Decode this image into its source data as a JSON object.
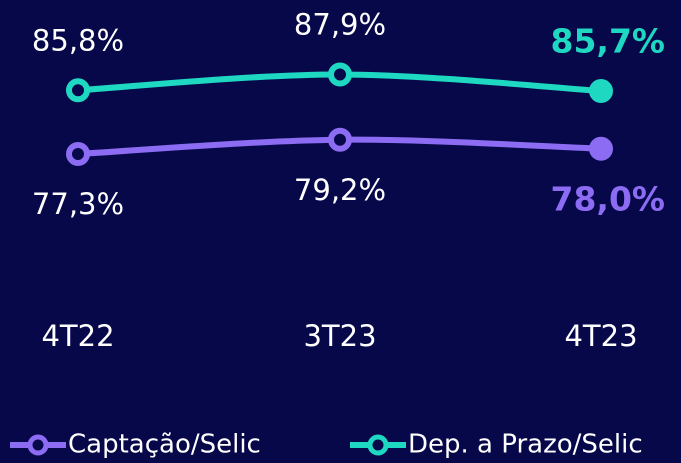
{
  "chart_data": {
    "type": "line",
    "categories": [
      "4T22",
      "3T23",
      "4T23"
    ],
    "series": [
      {
        "name": "Captação/Selic",
        "color": "#8c6cf2",
        "values": [
          77.3,
          79.2,
          78.0
        ],
        "value_labels": [
          "77,3%",
          "79,2%",
          "78,0%"
        ]
      },
      {
        "name": "Dep. a Prazo/Selic",
        "color": "#1fd8c2",
        "values": [
          85.8,
          87.9,
          85.7
        ],
        "value_labels": [
          "85,8%",
          "87,9%",
          "85,7%"
        ]
      }
    ]
  }
}
